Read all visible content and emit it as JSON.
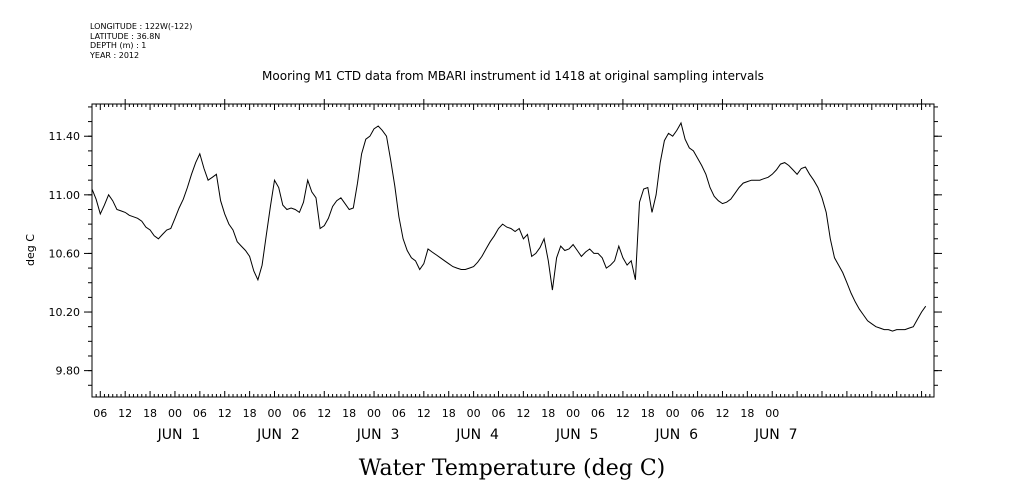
{
  "header": {
    "longitude": "LONGITUDE : 122W(-122)",
    "latitude": "LATITUDE : 36.8N",
    "depth": "DEPTH (m) : 1",
    "year": "YEAR : 2012"
  },
  "chart_data": {
    "type": "line",
    "title": "Mooring M1 CTD data from MBARI instrument id 1418 at original sampling intervals",
    "xlabel": "Water Temperature (deg C)",
    "ylabel": "deg C",
    "ylim": [
      9.62,
      11.62
    ],
    "yticks": [
      "9.80",
      "10.20",
      "10.60",
      "11.00",
      "11.40"
    ],
    "xlim_hours": [
      -8,
      195
    ],
    "hour_tick_labels": [
      "06",
      "12",
      "18",
      "00",
      "06",
      "12",
      "18",
      "00",
      "06",
      "12",
      "18",
      "00",
      "06",
      "12",
      "18",
      "00",
      "06",
      "12",
      "18",
      "00",
      "06",
      "12",
      "18",
      "00",
      "06",
      "12",
      "18",
      "00"
    ],
    "day_labels": [
      "JUN  1",
      "JUN  2",
      "JUN  3",
      "JUN  4",
      "JUN  5",
      "JUN  6",
      "JUN  7"
    ],
    "x_unit": "hours since 2012-06-01 00:00",
    "series": [
      {
        "values": [
          [
            -8,
            11.04
          ],
          [
            -7,
            10.97
          ],
          [
            -6,
            10.87
          ],
          [
            -5,
            10.93
          ],
          [
            -4,
            11.0
          ],
          [
            -3,
            10.96
          ],
          [
            -2,
            10.9
          ],
          [
            -1,
            10.89
          ],
          [
            0,
            10.88
          ],
          [
            1,
            10.86
          ],
          [
            2,
            10.85
          ],
          [
            3,
            10.84
          ],
          [
            4,
            10.82
          ],
          [
            5,
            10.78
          ],
          [
            6,
            10.76
          ],
          [
            7,
            10.72
          ],
          [
            8,
            10.7
          ],
          [
            9,
            10.73
          ],
          [
            10,
            10.76
          ],
          [
            11,
            10.77
          ],
          [
            12,
            10.84
          ],
          [
            13,
            10.91
          ],
          [
            14,
            10.97
          ],
          [
            15,
            11.05
          ],
          [
            16,
            11.14
          ],
          [
            17,
            11.22
          ],
          [
            18,
            11.28
          ],
          [
            19,
            11.18
          ],
          [
            20,
            11.1
          ],
          [
            21,
            11.12
          ],
          [
            22,
            11.14
          ],
          [
            23,
            10.96
          ],
          [
            24,
            10.87
          ],
          [
            25,
            10.8
          ],
          [
            26,
            10.76
          ],
          [
            27,
            10.68
          ],
          [
            28,
            10.65
          ],
          [
            29,
            10.62
          ],
          [
            30,
            10.58
          ],
          [
            31,
            10.48
          ],
          [
            32,
            10.42
          ],
          [
            33,
            10.52
          ],
          [
            34,
            10.72
          ],
          [
            35,
            10.92
          ],
          [
            36,
            11.1
          ],
          [
            37,
            11.05
          ],
          [
            38,
            10.93
          ],
          [
            39,
            10.9
          ],
          [
            40,
            10.91
          ],
          [
            41,
            10.9
          ],
          [
            42,
            10.88
          ],
          [
            43,
            10.95
          ],
          [
            44,
            11.1
          ],
          [
            45,
            11.02
          ],
          [
            46,
            10.98
          ],
          [
            47,
            10.77
          ],
          [
            48,
            10.79
          ],
          [
            49,
            10.84
          ],
          [
            50,
            10.92
          ],
          [
            51,
            10.96
          ],
          [
            52,
            10.98
          ],
          [
            53,
            10.94
          ],
          [
            54,
            10.9
          ],
          [
            55,
            10.91
          ],
          [
            56,
            11.08
          ],
          [
            57,
            11.28
          ],
          [
            58,
            11.38
          ],
          [
            59,
            11.4
          ],
          [
            60,
            11.45
          ],
          [
            61,
            11.47
          ],
          [
            62,
            11.44
          ],
          [
            63,
            11.4
          ],
          [
            64,
            11.24
          ],
          [
            65,
            11.06
          ],
          [
            66,
            10.85
          ],
          [
            67,
            10.7
          ],
          [
            68,
            10.62
          ],
          [
            69,
            10.57
          ],
          [
            70,
            10.55
          ],
          [
            71,
            10.49
          ],
          [
            72,
            10.53
          ],
          [
            73,
            10.63
          ],
          [
            74,
            10.61
          ],
          [
            75,
            10.59
          ],
          [
            76,
            10.57
          ],
          [
            77,
            10.55
          ],
          [
            78,
            10.53
          ],
          [
            79,
            10.51
          ],
          [
            80,
            10.5
          ],
          [
            81,
            10.49
          ],
          [
            82,
            10.49
          ],
          [
            83,
            10.5
          ],
          [
            84,
            10.51
          ],
          [
            85,
            10.54
          ],
          [
            86,
            10.58
          ],
          [
            87,
            10.63
          ],
          [
            88,
            10.68
          ],
          [
            89,
            10.72
          ],
          [
            90,
            10.77
          ],
          [
            91,
            10.8
          ],
          [
            92,
            10.78
          ],
          [
            93,
            10.77
          ],
          [
            94,
            10.75
          ],
          [
            95,
            10.77
          ],
          [
            96,
            10.7
          ],
          [
            97,
            10.73
          ],
          [
            98,
            10.58
          ],
          [
            99,
            10.6
          ],
          [
            100,
            10.64
          ],
          [
            101,
            10.7
          ],
          [
            102,
            10.55
          ],
          [
            103,
            10.35
          ],
          [
            104,
            10.57
          ],
          [
            105,
            10.65
          ],
          [
            106,
            10.62
          ],
          [
            107,
            10.63
          ],
          [
            108,
            10.66
          ],
          [
            109,
            10.62
          ],
          [
            110,
            10.58
          ],
          [
            111,
            10.61
          ],
          [
            112,
            10.63
          ],
          [
            113,
            10.6
          ],
          [
            114,
            10.6
          ],
          [
            115,
            10.57
          ],
          [
            116,
            10.5
          ],
          [
            117,
            10.52
          ],
          [
            118,
            10.55
          ],
          [
            119,
            10.65
          ],
          [
            120,
            10.57
          ],
          [
            121,
            10.52
          ],
          [
            122,
            10.55
          ],
          [
            123,
            10.42
          ],
          [
            124,
            10.95
          ],
          [
            125,
            11.04
          ],
          [
            126,
            11.05
          ],
          [
            127,
            10.88
          ],
          [
            128,
            11.0
          ],
          [
            129,
            11.22
          ],
          [
            130,
            11.37
          ],
          [
            131,
            11.42
          ],
          [
            132,
            11.4
          ],
          [
            133,
            11.44
          ],
          [
            134,
            11.49
          ],
          [
            135,
            11.38
          ],
          [
            136,
            11.32
          ],
          [
            137,
            11.3
          ],
          [
            138,
            11.25
          ],
          [
            139,
            11.2
          ],
          [
            140,
            11.14
          ],
          [
            141,
            11.05
          ],
          [
            142,
            10.99
          ],
          [
            143,
            10.96
          ],
          [
            144,
            10.94
          ],
          [
            145,
            10.95
          ],
          [
            146,
            10.97
          ],
          [
            147,
            11.01
          ],
          [
            148,
            11.05
          ],
          [
            149,
            11.08
          ],
          [
            150,
            11.09
          ],
          [
            151,
            11.1
          ],
          [
            152,
            11.1
          ],
          [
            153,
            11.1
          ],
          [
            154,
            11.11
          ],
          [
            155,
            11.12
          ],
          [
            156,
            11.14
          ],
          [
            157,
            11.17
          ],
          [
            158,
            11.21
          ],
          [
            159,
            11.22
          ],
          [
            160,
            11.2
          ],
          [
            161,
            11.17
          ],
          [
            162,
            11.14
          ],
          [
            163,
            11.18
          ],
          [
            164,
            11.19
          ],
          [
            165,
            11.14
          ],
          [
            166,
            11.1
          ],
          [
            167,
            11.05
          ],
          [
            168,
            10.98
          ],
          [
            169,
            10.88
          ],
          [
            170,
            10.7
          ],
          [
            171,
            10.57
          ],
          [
            172,
            10.52
          ],
          [
            173,
            10.47
          ],
          [
            174,
            10.4
          ],
          [
            175,
            10.33
          ],
          [
            176,
            10.27
          ],
          [
            177,
            10.22
          ],
          [
            178,
            10.18
          ],
          [
            179,
            10.14
          ],
          [
            180,
            10.12
          ],
          [
            181,
            10.1
          ],
          [
            182,
            10.09
          ],
          [
            183,
            10.08
          ],
          [
            184,
            10.08
          ],
          [
            185,
            10.07
          ],
          [
            186,
            10.08
          ],
          [
            187,
            10.08
          ],
          [
            188,
            10.08
          ],
          [
            189,
            10.09
          ],
          [
            190,
            10.1
          ],
          [
            191,
            10.15
          ],
          [
            192,
            10.2
          ],
          [
            193,
            10.24
          ]
        ]
      }
    ]
  }
}
